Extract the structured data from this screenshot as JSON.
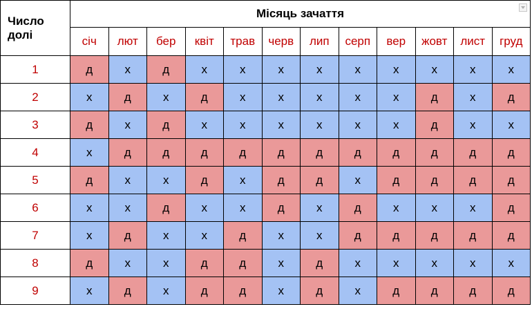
{
  "header": {
    "corner_line1": "Число",
    "corner_line2": "долі",
    "title": "Місяць зачаття",
    "filter_icon": "dropdown-filter-icon"
  },
  "months": [
    "січ",
    "лют",
    "бер",
    "квіт",
    "трав",
    "черв",
    "лип",
    "серп",
    "вер",
    "жовт",
    "лист",
    "груд"
  ],
  "rows": [
    {
      "num": "1",
      "cells": [
        "д",
        "х",
        "д",
        "х",
        "х",
        "х",
        "х",
        "х",
        "х",
        "х",
        "х",
        "х"
      ]
    },
    {
      "num": "2",
      "cells": [
        "х",
        "д",
        "х",
        "д",
        "х",
        "х",
        "х",
        "х",
        "х",
        "д",
        "х",
        "д"
      ]
    },
    {
      "num": "3",
      "cells": [
        "д",
        "х",
        "д",
        "х",
        "х",
        "х",
        "х",
        "х",
        "х",
        "д",
        "х",
        "х"
      ]
    },
    {
      "num": "4",
      "cells": [
        "х",
        "д",
        "д",
        "д",
        "д",
        "д",
        "д",
        "д",
        "д",
        "д",
        "д",
        "д"
      ]
    },
    {
      "num": "5",
      "cells": [
        "д",
        "х",
        "х",
        "д",
        "х",
        "д",
        "д",
        "х",
        "д",
        "д",
        "д",
        "д"
      ]
    },
    {
      "num": "6",
      "cells": [
        "х",
        "х",
        "д",
        "х",
        "х",
        "д",
        "х",
        "д",
        "х",
        "х",
        "х",
        "д"
      ]
    },
    {
      "num": "7",
      "cells": [
        "х",
        "д",
        "х",
        "х",
        "д",
        "х",
        "х",
        "д",
        "д",
        "д",
        "д",
        "д"
      ]
    },
    {
      "num": "8",
      "cells": [
        "д",
        "х",
        "х",
        "д",
        "д",
        "х",
        "д",
        "х",
        "х",
        "х",
        "х",
        "х"
      ]
    },
    {
      "num": "9",
      "cells": [
        "х",
        "д",
        "х",
        "д",
        "д",
        "х",
        "д",
        "х",
        "д",
        "д",
        "д",
        "д"
      ]
    }
  ],
  "colors": {
    "x_cell": "#a4c2f4",
    "d_cell": "#ea9999",
    "red_text": "#c00000"
  }
}
